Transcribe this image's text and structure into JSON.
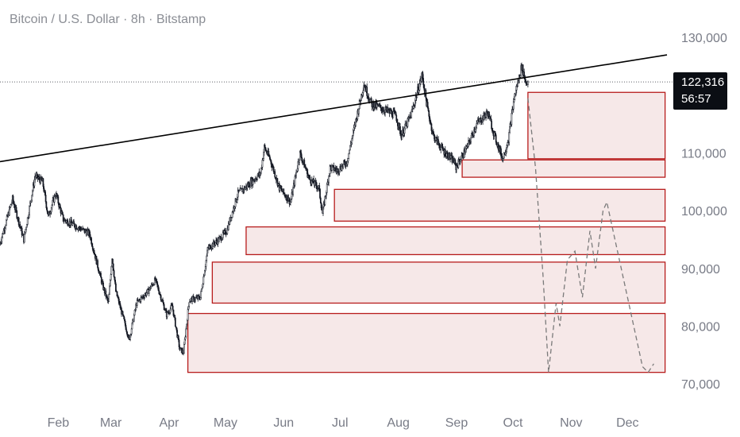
{
  "header": {
    "title": "Bitcoin / U.S. Dollar · 8h · Bitstamp"
  },
  "price_badge": {
    "price": "122,316",
    "countdown": "56:57"
  },
  "colors": {
    "zone_stroke": "#b71c1c",
    "zone_fill": "#f6e8e8",
    "candle": "#131722",
    "trendline": "#000000",
    "projection": "#7a7a7a",
    "label": "#787b86"
  },
  "chart_data": {
    "type": "candlestick",
    "title": "Bitcoin / U.S. Dollar · 8h · Bitstamp",
    "y_axis": {
      "range": [
        67000,
        136500
      ],
      "position": "right",
      "ticks": [
        70000,
        80000,
        90000,
        100000,
        110000,
        120000,
        130000
      ],
      "tick_labels": [
        "70,000",
        "80,000",
        "90,000",
        "100,000",
        "110,000",
        "",
        "130,000"
      ]
    },
    "x_axis": {
      "range": [
        "2025-01-01",
        "2025-12-22"
      ],
      "ticks": [
        "2025-02-01",
        "2025-03-01",
        "2025-04-01",
        "2025-05-01",
        "2025-06-01",
        "2025-07-01",
        "2025-08-01",
        "2025-09-01",
        "2025-10-01",
        "2025-11-01",
        "2025-12-01"
      ],
      "tick_labels": [
        "Feb",
        "Mar",
        "Apr",
        "May",
        "Jun",
        "Jul",
        "Aug",
        "Sep",
        "Oct",
        "Nov",
        "Dec"
      ]
    },
    "last_price": 122316,
    "price_path": [
      [
        "2025-01-01",
        94000
      ],
      [
        "2025-01-08",
        102000
      ],
      [
        "2025-01-14",
        95000
      ],
      [
        "2025-01-20",
        106000
      ],
      [
        "2025-01-24",
        105000
      ],
      [
        "2025-01-27",
        99000
      ],
      [
        "2025-01-31",
        103000
      ],
      [
        "2025-02-04",
        98500
      ],
      [
        "2025-02-10",
        97500
      ],
      [
        "2025-02-18",
        96000
      ],
      [
        "2025-02-25",
        87000
      ],
      [
        "2025-02-28",
        84000
      ],
      [
        "2025-03-02",
        92000
      ],
      [
        "2025-03-04",
        86000
      ],
      [
        "2025-03-10",
        79000
      ],
      [
        "2025-03-11",
        77500
      ],
      [
        "2025-03-15",
        84000
      ],
      [
        "2025-03-21",
        86000
      ],
      [
        "2025-03-25",
        88000
      ],
      [
        "2025-03-31",
        82000
      ],
      [
        "2025-04-03",
        83500
      ],
      [
        "2025-04-07",
        76000
      ],
      [
        "2025-04-09",
        75500
      ],
      [
        "2025-04-12",
        84500
      ],
      [
        "2025-04-18",
        85000
      ],
      [
        "2025-04-22",
        93500
      ],
      [
        "2025-04-28",
        95000
      ],
      [
        "2025-05-02",
        96500
      ],
      [
        "2025-05-08",
        103000
      ],
      [
        "2025-05-12",
        104000
      ],
      [
        "2025-05-20",
        106500
      ],
      [
        "2025-05-22",
        111000
      ],
      [
        "2025-05-25",
        109000
      ],
      [
        "2025-05-30",
        104000
      ],
      [
        "2025-06-05",
        101500
      ],
      [
        "2025-06-10",
        110000
      ],
      [
        "2025-06-15",
        105500
      ],
      [
        "2025-06-20",
        104000
      ],
      [
        "2025-06-22",
        99500
      ],
      [
        "2025-06-26",
        107500
      ],
      [
        "2025-06-30",
        107000
      ],
      [
        "2025-07-05",
        108500
      ],
      [
        "2025-07-10",
        116000
      ],
      [
        "2025-07-14",
        122000
      ],
      [
        "2025-07-18",
        118500
      ],
      [
        "2025-07-25",
        117500
      ],
      [
        "2025-07-31",
        116500
      ],
      [
        "2025-08-03",
        113000
      ],
      [
        "2025-08-08",
        116500
      ],
      [
        "2025-08-14",
        123500
      ],
      [
        "2025-08-17",
        117500
      ],
      [
        "2025-08-20",
        113000
      ],
      [
        "2025-08-25",
        110500
      ],
      [
        "2025-08-31",
        108500
      ],
      [
        "2025-09-01",
        107500
      ],
      [
        "2025-09-07",
        111000
      ],
      [
        "2025-09-12",
        115000
      ],
      [
        "2025-09-18",
        117000
      ],
      [
        "2025-09-22",
        112500
      ],
      [
        "2025-09-26",
        109000
      ],
      [
        "2025-09-29",
        112500
      ],
      [
        "2025-10-02",
        119500
      ],
      [
        "2025-10-06",
        125000
      ],
      [
        "2025-10-08",
        122500
      ],
      [
        "2025-10-09",
        122316
      ]
    ],
    "trendline": {
      "start": [
        "2025-01-01",
        108500
      ],
      "end": [
        "2025-12-22",
        127000
      ]
    },
    "zones": [
      {
        "x1": "2025-10-09",
        "x2": "2025-12-21",
        "y_low": 109000,
        "y_high": 120500
      },
      {
        "x1": "2025-09-04",
        "x2": "2025-12-21",
        "y_low": 105800,
        "y_high": 108800
      },
      {
        "x1": "2025-06-28",
        "x2": "2025-12-21",
        "y_low": 98200,
        "y_high": 103700
      },
      {
        "x1": "2025-05-12",
        "x2": "2025-12-21",
        "y_low": 92400,
        "y_high": 97200
      },
      {
        "x1": "2025-04-24",
        "x2": "2025-12-21",
        "y_low": 84000,
        "y_high": 91100
      },
      {
        "x1": "2025-04-11",
        "x2": "2025-12-21",
        "y_low": 72000,
        "y_high": 82200
      }
    ],
    "projection": [
      [
        "2025-10-09",
        119500
      ],
      [
        "2025-10-13",
        107500
      ],
      [
        "2025-10-17",
        89000
      ],
      [
        "2025-10-20",
        72000
      ],
      [
        "2025-10-24",
        84000
      ],
      [
        "2025-10-26",
        80000
      ],
      [
        "2025-10-30",
        91500
      ],
      [
        "2025-11-03",
        93000
      ],
      [
        "2025-11-07",
        85000
      ],
      [
        "2025-11-11",
        96500
      ],
      [
        "2025-11-14",
        90000
      ],
      [
        "2025-11-18",
        100000
      ],
      [
        "2025-11-20",
        101500
      ],
      [
        "2025-11-22",
        98500
      ],
      [
        "2025-12-01",
        85000
      ],
      [
        "2025-12-09",
        73000
      ],
      [
        "2025-12-12",
        72000
      ],
      [
        "2025-12-15",
        73500
      ]
    ],
    "grid": false
  }
}
